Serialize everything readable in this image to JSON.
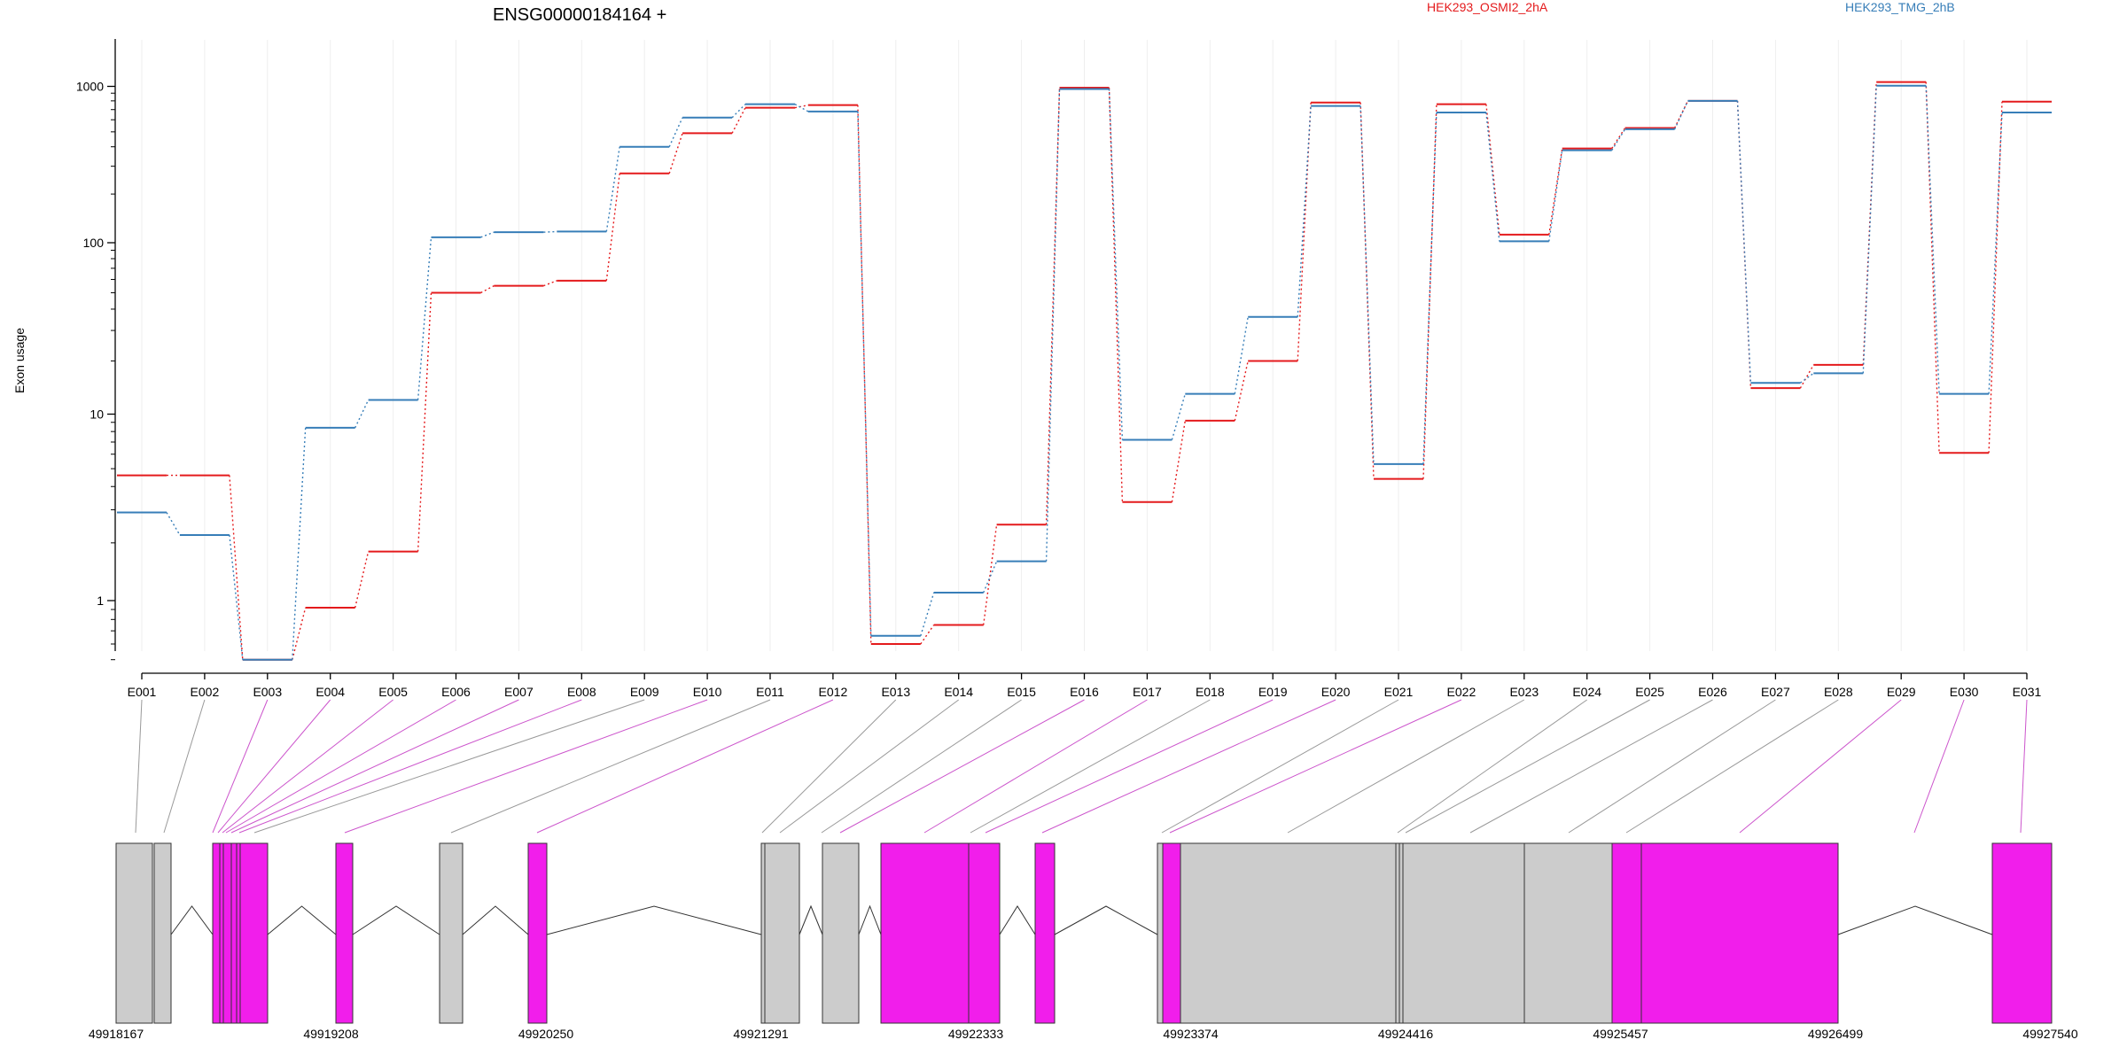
{
  "chart_data": {
    "type": "line",
    "title": "ENSG00000184164 +",
    "ylabel": "Exon usage",
    "xlabel": "",
    "y_scale": "log",
    "y_ticks": [
      "1",
      "10",
      "100",
      "1000"
    ],
    "categories": [
      "E001",
      "E002",
      "E003",
      "E004",
      "E005",
      "E006",
      "E007",
      "E008",
      "E009",
      "E010",
      "E011",
      "E012",
      "E013",
      "E014",
      "E015",
      "E016",
      "E017",
      "E018",
      "E019",
      "E020",
      "E021",
      "E022",
      "E023",
      "E024",
      "E025",
      "E026",
      "E027",
      "E028",
      "E029",
      "E030",
      "E031"
    ],
    "colors": {
      "red": "#e41a1c",
      "blue": "#377eb8",
      "magenta": "#f11eeb",
      "gray": "#cccccc"
    },
    "series": [
      {
        "name": "HEK293_OSMI2_2hA",
        "color": "#e41a1c",
        "values": [
          4.6,
          4.6,
          0.5,
          0.92,
          1.8,
          50,
          55,
          59,
          270,
          490,
          720,
          750,
          0.6,
          0.75,
          2.5,
          980,
          3.3,
          9.2,
          20,
          780,
          4.4,
          760,
          112,
          390,
          530,
          800,
          14,
          19,
          1070,
          6.1,
          790
        ]
      },
      {
        "name": "HEK293_TMG_2hB",
        "color": "#377eb8",
        "values": [
          2.9,
          2.2,
          0.5,
          8.4,
          12,
          108,
          116,
          117,
          400,
          620,
          760,
          680,
          0.66,
          1.1,
          1.6,
          960,
          7.2,
          13,
          36,
          740,
          5.3,
          670,
          102,
          380,
          520,
          800,
          15,
          17,
          1010,
          13,
          670
        ]
      }
    ],
    "genomic_ticks": [
      "49918167",
      "49919208",
      "49920250",
      "49921291",
      "49922333",
      "49923374",
      "49924416",
      "49925457",
      "49926499",
      "49927540"
    ],
    "exons_highlighted": [
      "E003",
      "E004",
      "E005",
      "E006",
      "E007",
      "E008",
      "E010",
      "E012",
      "E016",
      "E017",
      "E019",
      "E020",
      "E022",
      "E029",
      "E030",
      "E031"
    ]
  }
}
